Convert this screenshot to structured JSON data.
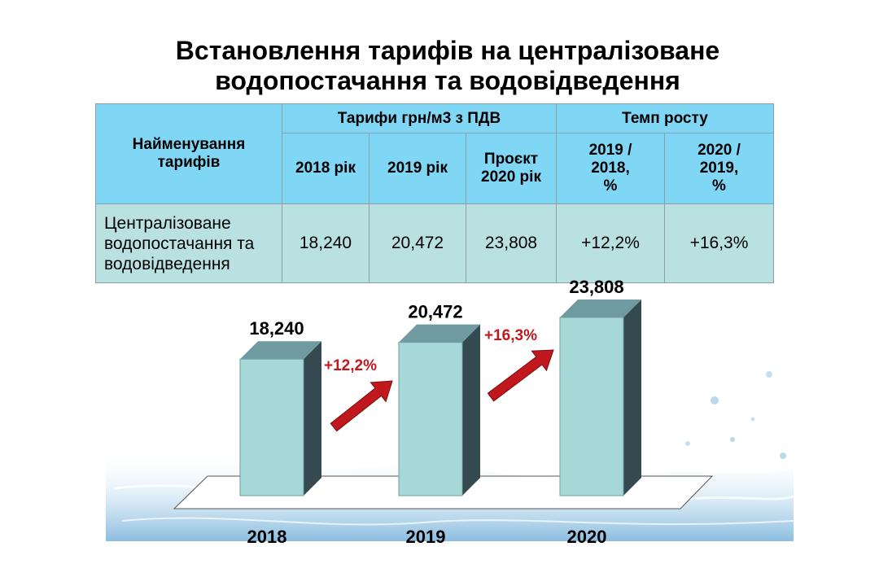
{
  "title": {
    "line1": "Встановлення тарифів  на централізоване",
    "line2": "водопостачання  та водовідведення"
  },
  "table": {
    "name_header": [
      "Найменування",
      "тарифів"
    ],
    "tariffs_group": "Тарифи грн/м3 з ПДВ",
    "growth_group": "Темп росту",
    "year_headers": [
      "2018 рік",
      "2019 рік",
      [
        "Проєкт",
        "2020 рік"
      ]
    ],
    "growth_headers": [
      [
        "2019 /",
        "2018,",
        "%"
      ],
      [
        "2020 /",
        "2019,",
        "%"
      ]
    ],
    "row": {
      "name": [
        "Централізоване",
        "водопостачання",
        "та водовідведення"
      ],
      "values": [
        "18,240",
        "20,472",
        "23,808",
        "+12,2%",
        "+16,3%"
      ]
    }
  },
  "chart_data": {
    "type": "bar",
    "categories": [
      "2018",
      "2019",
      "2020"
    ],
    "values": [
      18.24,
      20.472,
      23.808
    ],
    "value_labels": [
      "18,240",
      "20,472",
      "23,808"
    ],
    "growth_labels": [
      "+12,2%",
      "+16,3%"
    ],
    "ylim": [
      0,
      26
    ],
    "grid": false,
    "legend": "none",
    "colors": {
      "bar_front": "#a6d8d8",
      "bar_top": "#6f9aa0",
      "bar_side": "#354a50",
      "arrow": "#c0181c",
      "growth_text": "#c0181c",
      "water": "#9fcde6"
    }
  }
}
